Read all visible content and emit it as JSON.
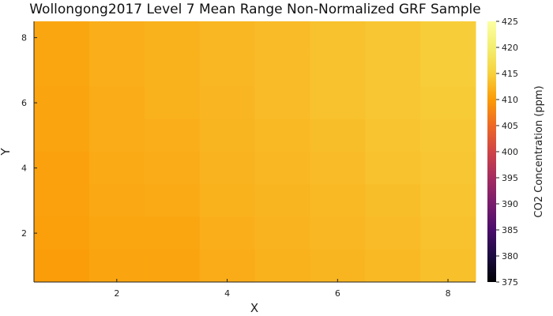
{
  "chart_data": {
    "type": "heatmap",
    "title": "Wollongong2017 Level 7 Mean Range Non-Normalized GRF Sample",
    "xlabel": "X",
    "ylabel": "Y",
    "x": [
      1,
      2,
      3,
      4,
      5,
      6,
      7,
      8
    ],
    "y": [
      1,
      2,
      3,
      4,
      5,
      6,
      7,
      8
    ],
    "xlim": [
      0.5,
      8.5
    ],
    "ylim": [
      0.5,
      8.5
    ],
    "xticks": [
      2,
      4,
      6,
      8
    ],
    "yticks": [
      2,
      4,
      6,
      8
    ],
    "z": [
      [
        411.0,
        411.8,
        412.0,
        412.6,
        413.0,
        413.6,
        414.0,
        414.6
      ],
      [
        411.0,
        411.8,
        412.0,
        412.6,
        413.0,
        413.6,
        414.0,
        414.6
      ],
      [
        410.8,
        411.6,
        412.0,
        412.5,
        413.0,
        413.6,
        414.0,
        414.4
      ],
      [
        410.8,
        411.6,
        411.8,
        412.4,
        412.8,
        413.2,
        413.8,
        414.2
      ],
      [
        410.6,
        411.4,
        411.6,
        412.2,
        412.6,
        413.0,
        413.6,
        414.0
      ],
      [
        410.6,
        411.2,
        411.4,
        412.0,
        412.4,
        412.8,
        413.2,
        413.8
      ],
      [
        410.4,
        411.0,
        411.0,
        411.8,
        412.2,
        412.6,
        413.0,
        413.6
      ],
      [
        410.2,
        410.8,
        410.8,
        411.6,
        412.0,
        412.4,
        412.8,
        413.4
      ]
    ],
    "colorbar": {
      "label": "CO2 Concentration (ppm)",
      "range": [
        375,
        425
      ],
      "ticks": [
        375,
        380,
        385,
        390,
        395,
        400,
        405,
        410,
        415,
        420,
        425
      ],
      "colormap": "inferno"
    },
    "grid": false
  }
}
